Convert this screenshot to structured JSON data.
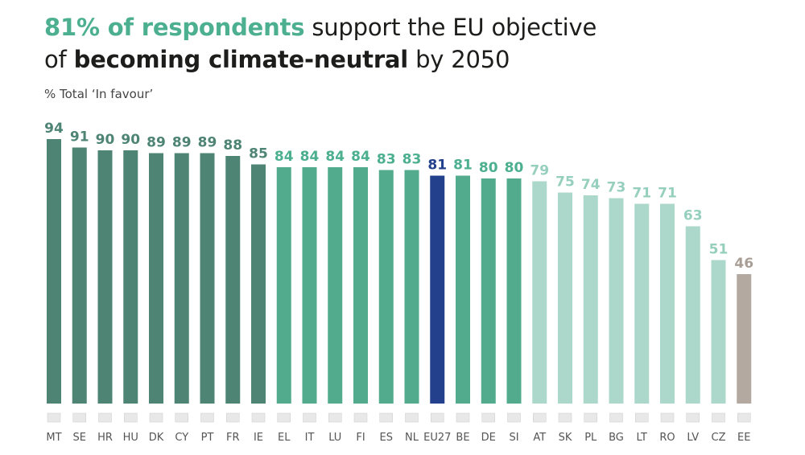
{
  "header": {
    "title_highlight": "81% of respondents",
    "title_rest_1": " support the EU objective",
    "title_line2_pre": "of ",
    "title_bold": "becoming climate-neutral",
    "title_line2_post": " by 2050",
    "subtitle": "% Total ‘In favour’"
  },
  "colors": {
    "dark_green": "#4e8474",
    "mid_green": "#52ab8c",
    "light_green": "#acd8cb",
    "eu_blue": "#22408b",
    "grey": "#b3a9a1"
  },
  "chart_data": {
    "type": "bar",
    "title": "",
    "xlabel": "",
    "ylabel": "% Total ‘In favour’",
    "ylim": [
      0,
      100
    ],
    "grid": false,
    "categories": [
      "MT",
      "SE",
      "HR",
      "HU",
      "DK",
      "CY",
      "PT",
      "FR",
      "IE",
      "EL",
      "IT",
      "LU",
      "FI",
      "ES",
      "NL",
      "EU27",
      "BE",
      "DE",
      "SI",
      "AT",
      "SK",
      "PL",
      "BG",
      "LT",
      "RO",
      "LV",
      "CZ",
      "EE"
    ],
    "values": [
      94,
      91,
      90,
      90,
      89,
      89,
      89,
      88,
      85,
      84,
      84,
      84,
      84,
      83,
      83,
      81,
      81,
      80,
      80,
      79,
      75,
      74,
      73,
      71,
      71,
      63,
      51,
      46
    ],
    "bar_colors": [
      "dark_green",
      "dark_green",
      "dark_green",
      "dark_green",
      "dark_green",
      "dark_green",
      "dark_green",
      "dark_green",
      "dark_green",
      "mid_green",
      "mid_green",
      "mid_green",
      "mid_green",
      "mid_green",
      "mid_green",
      "eu_blue",
      "mid_green",
      "mid_green",
      "mid_green",
      "light_green",
      "light_green",
      "light_green",
      "light_green",
      "light_green",
      "light_green",
      "light_green",
      "light_green",
      "grey"
    ]
  }
}
